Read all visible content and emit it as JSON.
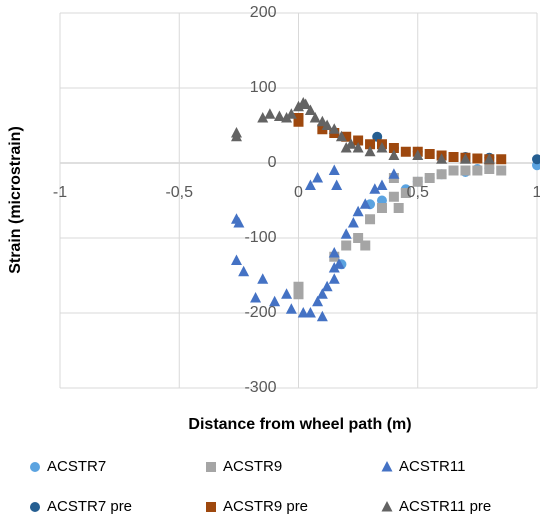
{
  "chart_data": {
    "type": "scatter",
    "x_label": "Distance from wheel path (m)",
    "y_label": "Strain (microstrain)",
    "xlim": [
      -1,
      1
    ],
    "xticks": [
      -1,
      {
        "value": -0.5,
        "label": "-0,5"
      },
      0,
      {
        "value": 0.5,
        "label": "0,5"
      },
      1
    ],
    "ylim": [
      -300,
      200
    ],
    "yticks": [
      200,
      100,
      0,
      -100,
      -200,
      -300
    ],
    "grid": true,
    "legend": "bottom",
    "series": [
      {
        "name": "ACSTR7",
        "color": "#5ba3e0",
        "marker": "circle",
        "x": [
          0.18,
          0.3,
          0.35,
          0.45,
          0.5,
          0.55,
          0.6,
          0.65,
          0.7,
          0.75,
          0.8,
          1.0
        ],
        "values": [
          -135,
          -55,
          -50,
          -35,
          -25,
          -20,
          -15,
          -10,
          -12,
          -8,
          -7,
          -3
        ]
      },
      {
        "name": "ACSTR9",
        "color": "#a5a5a5",
        "marker": "square",
        "x": [
          0.0,
          0.0,
          0.15,
          0.2,
          0.25,
          0.28,
          0.3,
          0.35,
          0.4,
          0.42,
          0.45,
          0.5,
          0.55,
          0.6,
          0.65,
          0.7,
          0.75,
          0.8,
          0.85,
          0.4
        ],
        "values": [
          -165,
          -175,
          -125,
          -110,
          -100,
          -110,
          -75,
          -60,
          -45,
          -60,
          -40,
          -25,
          -20,
          -15,
          -10,
          -10,
          -10,
          -8,
          -10,
          -20
        ]
      },
      {
        "name": "ACSTR11",
        "color": "#4472c4",
        "marker": "triangle",
        "x": [
          -0.26,
          -0.25,
          -0.26,
          -0.23,
          -0.18,
          -0.15,
          -0.1,
          -0.05,
          -0.03,
          0.02,
          0.05,
          0.08,
          0.1,
          0.1,
          0.12,
          0.15,
          0.15,
          0.17,
          0.15,
          0.2,
          0.23,
          0.25,
          0.28,
          0.32,
          0.35,
          0.16,
          0.08,
          0.05,
          0.15,
          0.4
        ],
        "values": [
          -75,
          -80,
          -130,
          -145,
          -180,
          -155,
          -185,
          -175,
          -195,
          -200,
          -200,
          -185,
          -175,
          -205,
          -165,
          -140,
          -155,
          -135,
          -120,
          -95,
          -80,
          -65,
          -55,
          -35,
          -30,
          -30,
          -20,
          -30,
          -10,
          -15
        ]
      },
      {
        "name": "ACSTR7 pre",
        "color": "#255e91",
        "marker": "circle",
        "x": [
          0.33,
          0.4,
          0.5,
          0.6,
          0.7,
          0.8,
          1.0
        ],
        "values": [
          35,
          20,
          15,
          10,
          8,
          7,
          5
        ]
      },
      {
        "name": "ACSTR9 pre",
        "color": "#9e480e",
        "marker": "square",
        "x": [
          0.0,
          0.0,
          0.1,
          0.15,
          0.2,
          0.25,
          0.3,
          0.35,
          0.4,
          0.45,
          0.5,
          0.55,
          0.6,
          0.65,
          0.7,
          0.75,
          0.8,
          0.85
        ],
        "values": [
          60,
          55,
          45,
          40,
          35,
          30,
          25,
          25,
          20,
          15,
          15,
          12,
          10,
          8,
          7,
          6,
          5,
          5
        ]
      },
      {
        "name": "ACSTR11 pre",
        "color": "#636363",
        "marker": "triangle",
        "x": [
          -0.26,
          -0.26,
          -0.15,
          -0.12,
          -0.08,
          -0.05,
          -0.03,
          0.0,
          0.02,
          0.03,
          0.05,
          0.07,
          0.1,
          0.12,
          0.15,
          0.18,
          0.2,
          0.22,
          0.25,
          0.3,
          0.35,
          0.4,
          0.5,
          0.6,
          0.7,
          0.8
        ],
        "values": [
          40,
          35,
          60,
          65,
          62,
          60,
          65,
          75,
          80,
          78,
          70,
          60,
          55,
          50,
          45,
          35,
          20,
          25,
          20,
          15,
          20,
          10,
          10,
          5,
          5,
          5
        ]
      }
    ]
  }
}
